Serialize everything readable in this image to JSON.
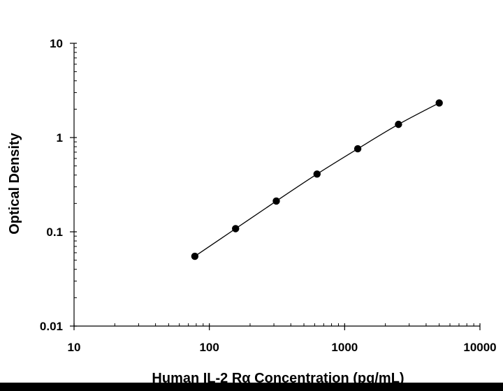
{
  "chart_data": {
    "type": "scatter",
    "title": "",
    "xlabel": "Human IL-2 Rα Concentration (pg/mL)",
    "ylabel": "Optical Density",
    "x_scale": "log",
    "y_scale": "log",
    "xlim": [
      10,
      10000
    ],
    "ylim": [
      0.01,
      10
    ],
    "x_ticks": [
      "10",
      "100",
      "1000",
      "10000"
    ],
    "y_ticks": [
      "0.01",
      "0.1",
      "1",
      "10"
    ],
    "grid": false,
    "legend": "none",
    "series": [
      {
        "x": [
          78.1,
          156.3,
          312.5,
          625,
          1250,
          2500,
          5000
        ],
        "y": [
          0.055,
          0.108,
          0.212,
          0.41,
          0.76,
          1.38,
          2.33
        ],
        "marker": "circle",
        "line": "smooth",
        "color": "#000000"
      }
    ]
  }
}
